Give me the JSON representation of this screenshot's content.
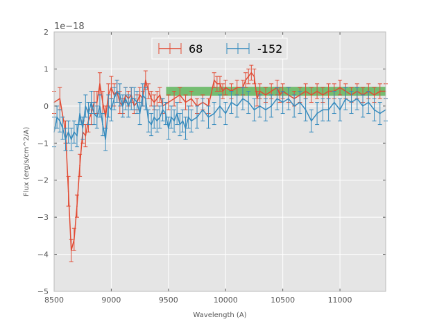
{
  "chart_data": {
    "type": "line",
    "xlabel": "Wavelength (A)",
    "ylabel": "Flux (erg/s/cm^2/A)",
    "offset_text": "1e−18",
    "xlim": [
      8500,
      11400
    ],
    "ylim": [
      -5,
      2
    ],
    "xticks": [
      8500,
      9000,
      9500,
      10000,
      10500,
      11000
    ],
    "xtick_labels": [
      "8500",
      "9000",
      "9500",
      "10000",
      "10500",
      "11000"
    ],
    "yticks": [
      -5,
      -4,
      -3,
      -2,
      -1,
      0,
      1,
      2
    ],
    "ytick_labels": [
      "−5",
      "−4",
      "−3",
      "−2",
      "−1",
      "0",
      "1",
      "2"
    ],
    "grid": true,
    "legend_position": "top-center",
    "band": {
      "x_start": 9480,
      "x_end": 11400,
      "y_low": 0.28,
      "y_high": 0.52,
      "color": "#4daf4a"
    },
    "series": [
      {
        "name": "68",
        "color": "#E24A33",
        "x": [
          8500,
          8550,
          8600,
          8625,
          8650,
          8675,
          8700,
          8725,
          8750,
          8775,
          8800,
          8825,
          8850,
          8875,
          8900,
          8925,
          8950,
          8975,
          9000,
          9025,
          9050,
          9075,
          9100,
          9125,
          9150,
          9175,
          9200,
          9225,
          9250,
          9275,
          9300,
          9325,
          9350,
          9375,
          9400,
          9425,
          9450,
          9500,
          9550,
          9600,
          9650,
          9700,
          9750,
          9800,
          9850,
          9900,
          9925,
          9950,
          9975,
          10000,
          10050,
          10100,
          10150,
          10175,
          10200,
          10225,
          10250,
          10275,
          10300,
          10350,
          10400,
          10450,
          10475,
          10500,
          10550,
          10600,
          10650,
          10700,
          10750,
          10800,
          10850,
          10900,
          10950,
          11000,
          11050,
          11100,
          11150,
          11200,
          11250,
          11300,
          11350,
          11400
        ],
        "y": [
          0.1,
          0.2,
          -0.7,
          -2.3,
          -3.9,
          -3.6,
          -2.7,
          -1.6,
          -0.7,
          -0.8,
          -0.4,
          -0.2,
          0.1,
          0.1,
          0.6,
          0.1,
          -0.3,
          0.3,
          0.5,
          0.3,
          0.4,
          0.1,
          0.0,
          0.3,
          0.2,
          0.3,
          0.0,
          0.1,
          0.3,
          0.2,
          0.7,
          0.4,
          0.2,
          0.1,
          0.2,
          0.3,
          0.0,
          0.1,
          0.2,
          0.3,
          0.1,
          0.2,
          0.0,
          0.1,
          0.0,
          0.7,
          0.6,
          0.6,
          0.4,
          0.5,
          0.4,
          0.5,
          0.5,
          0.7,
          0.8,
          0.9,
          0.8,
          0.2,
          0.4,
          0.3,
          0.4,
          0.5,
          0.3,
          0.4,
          0.3,
          0.2,
          0.3,
          0.4,
          0.3,
          0.4,
          0.3,
          0.4,
          0.4,
          0.5,
          0.4,
          0.3,
          0.4,
          0.3,
          0.4,
          0.3,
          0.4,
          0.4
        ],
        "err": [
          0.3,
          0.3,
          0.3,
          0.4,
          0.3,
          0.3,
          0.3,
          0.3,
          0.3,
          0.3,
          0.3,
          0.3,
          0.3,
          0.3,
          0.3,
          0.3,
          0.3,
          0.3,
          0.3,
          0.3,
          0.3,
          0.3,
          0.2,
          0.2,
          0.2,
          0.2,
          0.2,
          0.2,
          0.2,
          0.2,
          0.25,
          0.2,
          0.2,
          0.2,
          0.2,
          0.2,
          0.2,
          0.2,
          0.2,
          0.2,
          0.2,
          0.2,
          0.2,
          0.2,
          0.2,
          0.2,
          0.2,
          0.2,
          0.2,
          0.2,
          0.2,
          0.2,
          0.2,
          0.2,
          0.2,
          0.2,
          0.2,
          0.2,
          0.2,
          0.2,
          0.2,
          0.2,
          0.2,
          0.2,
          0.2,
          0.2,
          0.2,
          0.2,
          0.2,
          0.2,
          0.2,
          0.2,
          0.2,
          0.2,
          0.2,
          0.2,
          0.2,
          0.2,
          0.2,
          0.2,
          0.2,
          0.2
        ]
      },
      {
        "name": "-152",
        "color": "#348ABD",
        "x": [
          8500,
          8525,
          8550,
          8575,
          8600,
          8625,
          8650,
          8675,
          8700,
          8725,
          8750,
          8775,
          8800,
          8825,
          8850,
          8875,
          8900,
          8925,
          8950,
          8975,
          9000,
          9025,
          9050,
          9075,
          9100,
          9125,
          9150,
          9175,
          9200,
          9225,
          9250,
          9275,
          9300,
          9325,
          9350,
          9375,
          9400,
          9425,
          9450,
          9475,
          9500,
          9525,
          9550,
          9575,
          9600,
          9625,
          9650,
          9675,
          9700,
          9750,
          9800,
          9850,
          9900,
          9950,
          10000,
          10050,
          10100,
          10150,
          10200,
          10250,
          10300,
          10350,
          10400,
          10450,
          10500,
          10550,
          10600,
          10650,
          10700,
          10750,
          10800,
          10850,
          10900,
          10950,
          11000,
          11050,
          11100,
          11150,
          11200,
          11250,
          11300,
          11350,
          11400
        ],
        "y": [
          -0.7,
          -0.3,
          -0.4,
          -0.6,
          -0.9,
          -0.7,
          -0.9,
          -0.7,
          -0.8,
          -0.2,
          -0.6,
          0.0,
          -0.2,
          0.1,
          -0.2,
          -0.3,
          0.0,
          -0.5,
          -0.9,
          0.0,
          -0.1,
          0.2,
          0.4,
          0.3,
          0.0,
          0.2,
          0.0,
          0.2,
          0.2,
          0.1,
          -0.2,
          0.3,
          0.2,
          -0.4,
          -0.5,
          -0.3,
          -0.4,
          -0.3,
          -0.1,
          -0.2,
          -0.6,
          -0.3,
          -0.4,
          -0.2,
          -0.5,
          -0.4,
          -0.6,
          -0.3,
          -0.4,
          -0.3,
          -0.1,
          -0.3,
          -0.2,
          0.0,
          -0.2,
          0.1,
          0.0,
          0.2,
          0.1,
          -0.1,
          0.0,
          -0.1,
          0.0,
          0.2,
          0.1,
          0.2,
          0.0,
          0.1,
          -0.1,
          -0.4,
          -0.2,
          -0.1,
          -0.1,
          0.1,
          -0.1,
          0.2,
          0.1,
          0.2,
          0.0,
          0.1,
          -0.1,
          -0.2,
          -0.1
        ],
        "err": [
          0.4,
          0.3,
          0.3,
          0.3,
          0.3,
          0.3,
          0.3,
          0.3,
          0.3,
          0.3,
          0.3,
          0.3,
          0.3,
          0.3,
          0.3,
          0.3,
          0.3,
          0.3,
          0.3,
          0.3,
          0.3,
          0.3,
          0.3,
          0.3,
          0.3,
          0.3,
          0.3,
          0.3,
          0.3,
          0.3,
          0.3,
          0.3,
          0.3,
          0.3,
          0.3,
          0.3,
          0.3,
          0.3,
          0.3,
          0.3,
          0.3,
          0.3,
          0.3,
          0.3,
          0.3,
          0.3,
          0.3,
          0.3,
          0.3,
          0.3,
          0.3,
          0.3,
          0.3,
          0.3,
          0.3,
          0.3,
          0.3,
          0.3,
          0.3,
          0.3,
          0.3,
          0.3,
          0.3,
          0.3,
          0.3,
          0.3,
          0.3,
          0.3,
          0.3,
          0.3,
          0.3,
          0.3,
          0.3,
          0.3,
          0.3,
          0.3,
          0.3,
          0.3,
          0.3,
          0.3,
          0.3,
          0.3,
          0.3
        ]
      }
    ]
  }
}
